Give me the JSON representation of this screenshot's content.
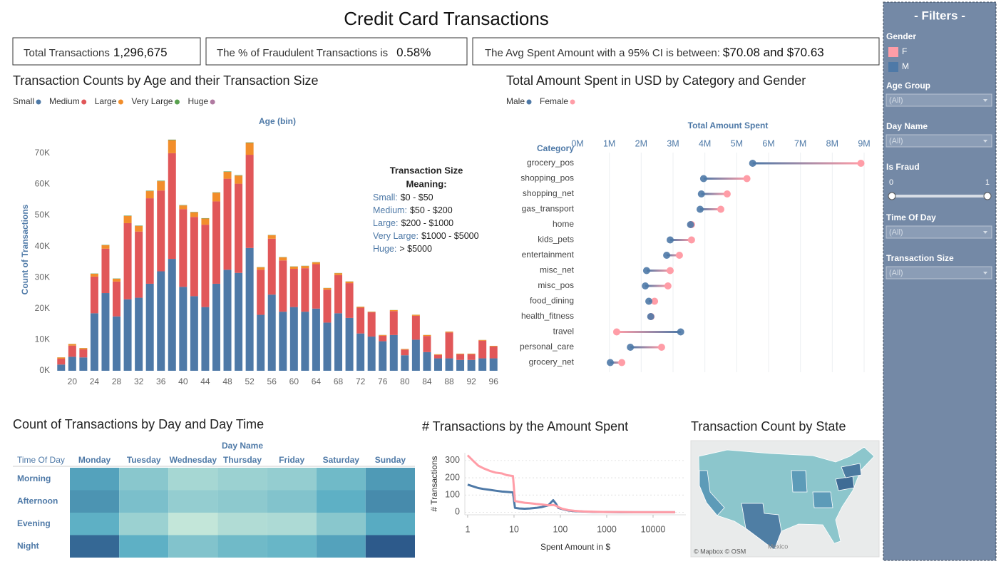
{
  "title": "Credit Card Transactions",
  "kpis": [
    {
      "label": "Total Transactions",
      "value": "1,296,675"
    },
    {
      "label": "The % of Fraudulent Transactions is",
      "value": "0.58%"
    },
    {
      "label": "The Avg Spent Amount with a 95% CI is between:",
      "value": "$70.08 and $70.63"
    }
  ],
  "filters": {
    "title": "- Filters -",
    "controls": [
      {
        "kind": "legend",
        "label": "Gender",
        "items": [
          {
            "name": "F",
            "color": "#ff9da7"
          },
          {
            "name": "M",
            "color": "#4e79a7"
          }
        ]
      },
      {
        "kind": "dropdown",
        "label": "Age Group",
        "value": "(All)"
      },
      {
        "kind": "dropdown",
        "label": "Day Name",
        "value": "(All)"
      },
      {
        "kind": "slider",
        "label": "Is Fraud",
        "min": 0,
        "max": 1
      },
      {
        "kind": "dropdown",
        "label": "Time Of Day",
        "value": "(All)"
      },
      {
        "kind": "dropdown",
        "label": "Transaction Size",
        "value": "(All)"
      }
    ]
  },
  "chart_data": [
    {
      "type": "bar",
      "stacked": true,
      "title": "Transaction Counts by Age and their Transaction Size",
      "x_label": "Age (bin)",
      "y_label": "Count of Transactions",
      "categories": [
        null,
        "20",
        null,
        "24",
        null,
        "28",
        null,
        "32",
        null,
        "36",
        null,
        "40",
        null,
        "44",
        null,
        "48",
        null,
        "52",
        null,
        "56",
        null,
        "60",
        null,
        "64",
        null,
        "68",
        null,
        "72",
        null,
        "76",
        null,
        "80",
        null,
        "84",
        null,
        "88",
        null,
        "92",
        null,
        "96"
      ],
      "series": [
        {
          "name": "Small",
          "color": "#4e79a7",
          "values": [
            2000,
            4500,
            4300,
            18500,
            25000,
            17500,
            23000,
            23500,
            28000,
            32000,
            36000,
            27000,
            24000,
            20500,
            28000,
            32500,
            31500,
            39500,
            18000,
            24500,
            19000,
            20500,
            19000,
            20000,
            15500,
            18500,
            17000,
            12000,
            11000,
            9500,
            11500,
            5000,
            10000,
            6000,
            4000,
            4000,
            3500,
            3500,
            4000,
            4000
          ]
        },
        {
          "name": "Medium",
          "color": "#e15759",
          "values": [
            1900,
            3600,
            2600,
            11800,
            14300,
            11200,
            24500,
            21300,
            27500,
            26000,
            34000,
            25000,
            25500,
            26500,
            26500,
            29300,
            28700,
            30000,
            14500,
            18000,
            16500,
            12300,
            14000,
            14300,
            10600,
            12300,
            11200,
            8300,
            7800,
            1800,
            7700,
            1800,
            7700,
            5200,
            1100,
            8300,
            1800,
            1800,
            5700,
            3800
          ]
        },
        {
          "name": "Large",
          "color": "#f28e2b",
          "values": [
            400,
            500,
            400,
            900,
            1100,
            900,
            2300,
            1800,
            2300,
            3000,
            4200,
            1200,
            1500,
            2000,
            2800,
            2200,
            2600,
            3800,
            800,
            1100,
            1000,
            700,
            700,
            600,
            500,
            600,
            500,
            300,
            200,
            200,
            300,
            200,
            300,
            300,
            200,
            300,
            200,
            200,
            200,
            200
          ]
        },
        {
          "name": "Very Large",
          "color": "#59a14f",
          "values": [
            20,
            30,
            30,
            80,
            100,
            80,
            120,
            110,
            130,
            140,
            160,
            110,
            110,
            100,
            120,
            130,
            130,
            160,
            70,
            90,
            80,
            70,
            70,
            70,
            50,
            60,
            50,
            40,
            40,
            30,
            40,
            20,
            30,
            30,
            20,
            20,
            20,
            20,
            20,
            20
          ]
        },
        {
          "name": "Huge",
          "color": "#b07aa1",
          "values": [
            2,
            3,
            3,
            8,
            10,
            8,
            12,
            11,
            13,
            14,
            16,
            11,
            11,
            10,
            12,
            13,
            13,
            16,
            7,
            9,
            8,
            7,
            7,
            7,
            5,
            6,
            5,
            4,
            4,
            3,
            4,
            2,
            3,
            3,
            2,
            2,
            2,
            2,
            2,
            2
          ]
        }
      ],
      "ylim": [
        0,
        78000
      ],
      "yticks": [
        {
          "value": 0,
          "label": "0K"
        },
        {
          "value": 10000,
          "label": "10K"
        },
        {
          "value": 20000,
          "label": "20K"
        },
        {
          "value": 30000,
          "label": "30K"
        },
        {
          "value": 40000,
          "label": "40K"
        },
        {
          "value": 50000,
          "label": "50K"
        },
        {
          "value": 60000,
          "label": "60K"
        },
        {
          "value": 70000,
          "label": "70K"
        }
      ],
      "annotation": {
        "title_lines": [
          "Transaction Size",
          "Meaning:"
        ],
        "lines": [
          {
            "label": "Small:",
            "text": "$0 - $50"
          },
          {
            "label": "Medium:",
            "text": "$50 - $200"
          },
          {
            "label": "Large:",
            "text": "$200 - $1000"
          },
          {
            "label": "Very Large:",
            "text": "$1000 - $5000"
          },
          {
            "label": "Huge:",
            "text": "> $5000"
          }
        ]
      }
    },
    {
      "type": "dumbbell",
      "title": "Total Amount Spent in USD by Category and Gender",
      "x_label": "Total Amount Spent",
      "y_label": "Category",
      "categories": [
        "grocery_pos",
        "shopping_pos",
        "shopping_net",
        "gas_transport",
        "home",
        "kids_pets",
        "entertainment",
        "misc_net",
        "misc_pos",
        "food_dining",
        "health_fitness",
        "travel",
        "personal_care",
        "grocery_net"
      ],
      "series": [
        {
          "name": "Male",
          "color": "#4e79a7",
          "values": [
            5500000,
            3960000,
            3890000,
            3850000,
            3550000,
            2910000,
            2800000,
            2170000,
            2130000,
            2240000,
            2300000,
            3240000,
            1660000,
            1030000
          ]
        },
        {
          "name": "Female",
          "color": "#ff9da7",
          "values": [
            8900000,
            5320000,
            4700000,
            4500000,
            3580000,
            3580000,
            3200000,
            2910000,
            2840000,
            2420000,
            2310000,
            1230000,
            2640000,
            1390000
          ]
        }
      ],
      "xlim": [
        0,
        9000000
      ],
      "xticks": [
        {
          "value": 0,
          "label": "0M"
        },
        {
          "value": 1000000,
          "label": "1M"
        },
        {
          "value": 2000000,
          "label": "2M"
        },
        {
          "value": 3000000,
          "label": "3M"
        },
        {
          "value": 4000000,
          "label": "4M"
        },
        {
          "value": 5000000,
          "label": "5M"
        },
        {
          "value": 6000000,
          "label": "6M"
        },
        {
          "value": 7000000,
          "label": "7M"
        },
        {
          "value": 8000000,
          "label": "8M"
        },
        {
          "value": 9000000,
          "label": "9M"
        }
      ],
      "grid": true
    },
    {
      "type": "heatmap",
      "title": "Count of Transactions by Day and Day Time",
      "x_label": "Day Name",
      "y_label": "Time Of Day",
      "categories": [
        "Monday",
        "Tuesday",
        "Wednesday",
        "Thursday",
        "Friday",
        "Saturday",
        "Sunday"
      ],
      "rows": [
        "Morning",
        "Afternoon",
        "Evening",
        "Night"
      ],
      "values": [
        [
          55000,
          38000,
          30000,
          33000,
          35000,
          45000,
          58000
        ],
        [
          60000,
          42000,
          35000,
          37000,
          40000,
          50000,
          63000
        ],
        [
          50000,
          33000,
          22000,
          27000,
          28000,
          38000,
          52000
        ],
        [
          75000,
          50000,
          40000,
          45000,
          47000,
          55000,
          80000
        ]
      ],
      "colors": [
        "#c3e6d9",
        "#5aaec4",
        "#2d5a8b"
      ]
    },
    {
      "type": "line",
      "title": "# Transactions by the Amount Spent",
      "x_label": "Spent Amount in $",
      "y_label": "# Transactions",
      "x": [
        1,
        1.3,
        1.7,
        2.2,
        3,
        4,
        5.5,
        7,
        9.5,
        10.5,
        13,
        17,
        22,
        30,
        40,
        55,
        70,
        80,
        90,
        110,
        150,
        200,
        300,
        500,
        1000,
        2000,
        5000,
        10000,
        30000
      ],
      "series": [
        {
          "color": "#4e79a7",
          "values": [
            160,
            150,
            140,
            135,
            130,
            125,
            120,
            118,
            115,
            25,
            22,
            20,
            22,
            25,
            30,
            40,
            70,
            50,
            25,
            18,
            10,
            6,
            4,
            2,
            1,
            0,
            0,
            0,
            0
          ]
        },
        {
          "color": "#ff9da7",
          "values": [
            330,
            300,
            270,
            255,
            240,
            230,
            225,
            215,
            210,
            65,
            60,
            55,
            52,
            48,
            45,
            40,
            42,
            38,
            30,
            20,
            12,
            8,
            5,
            3,
            1,
            1,
            0,
            0,
            0
          ]
        }
      ],
      "xscale": "log",
      "xlim": [
        0.87,
        51000
      ],
      "xticks": [
        1,
        10,
        100,
        1000,
        10000
      ],
      "ylim": [
        -15,
        345
      ],
      "yticks": [
        0,
        100,
        200,
        300
      ]
    },
    {
      "type": "map",
      "title": "Transaction Count by State",
      "attribution": "© Mapbox © OSM",
      "labels": [
        "Mexico"
      ]
    }
  ]
}
